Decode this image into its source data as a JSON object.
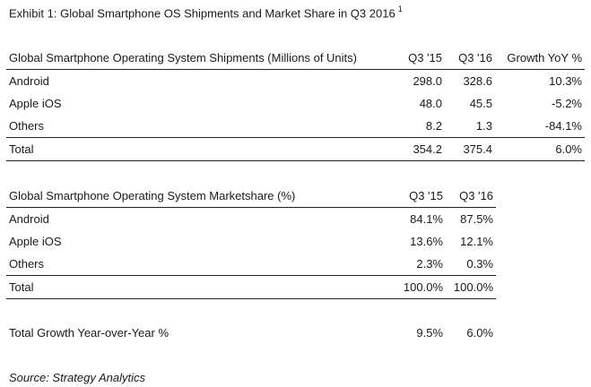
{
  "exhibit": {
    "title": "Exhibit 1: Global Smartphone OS Shipments and Market Share in Q3 2016",
    "footnote": "1"
  },
  "shipments": {
    "headers": [
      "Global Smartphone Operating System Shipments (Millions of Units)",
      "Q3 '15",
      "Q3 '16",
      "Growth YoY %"
    ],
    "rows": [
      [
        "Android",
        "298.0",
        "328.6",
        "10.3%"
      ],
      [
        "Apple iOS",
        "48.0",
        "45.5",
        "-5.2%"
      ],
      [
        "Others",
        "8.2",
        "1.3",
        "-84.1%"
      ]
    ],
    "total": [
      "Total",
      "354.2",
      "375.4",
      "6.0%"
    ]
  },
  "marketshare": {
    "headers": [
      "Global Smartphone Operating System Marketshare (%)",
      "Q3 '15",
      "Q3 '16"
    ],
    "rows": [
      [
        "Android",
        "84.1%",
        "87.5%"
      ],
      [
        "Apple iOS",
        "13.6%",
        "12.1%"
      ],
      [
        "Others",
        "2.3%",
        "0.3%"
      ]
    ],
    "total": [
      "Total",
      "100.0%",
      "100.0%"
    ]
  },
  "growth": {
    "label": "Total Growth Year-over-Year %",
    "q3_15": "9.5%",
    "q3_16": "6.0%"
  },
  "source": "Source: Strategy Analytics"
}
